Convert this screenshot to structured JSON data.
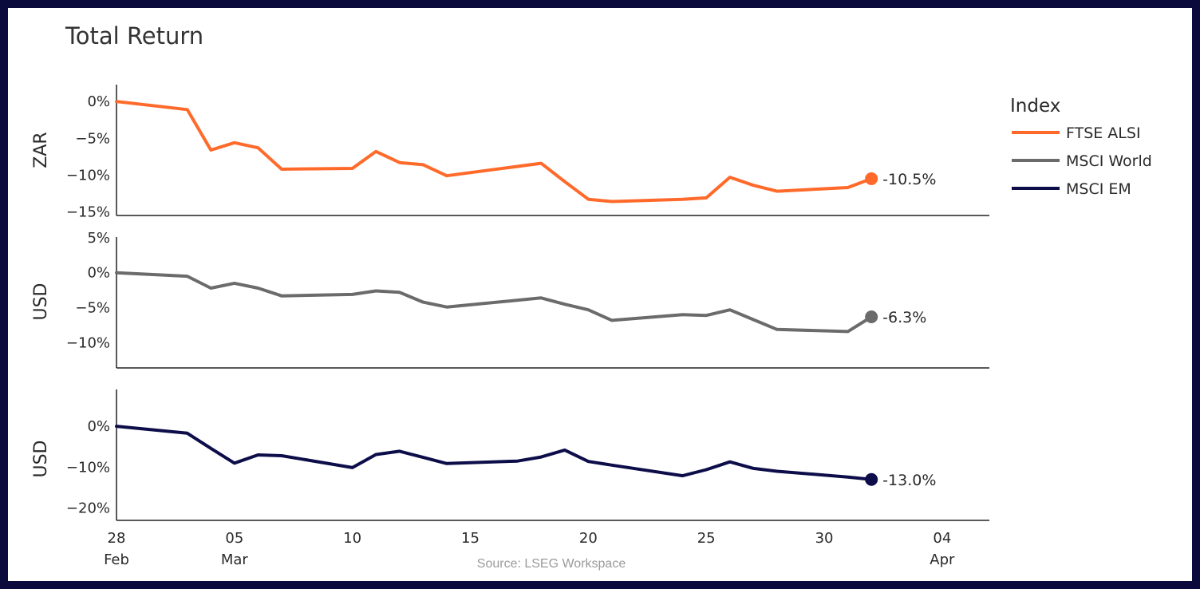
{
  "chart_data": {
    "type": "line",
    "title": "Total Return",
    "source": "Source: LSEG Workspace",
    "legend": {
      "title": "Index",
      "position": "right"
    },
    "x_ticks": [
      {
        "date": "2025-02-28",
        "day": "28",
        "month": "Feb"
      },
      {
        "date": "2025-03-05",
        "day": "05",
        "month": "Mar"
      },
      {
        "date": "2025-03-10",
        "day": "10",
        "month": ""
      },
      {
        "date": "2025-03-15",
        "day": "15",
        "month": ""
      },
      {
        "date": "2025-03-20",
        "day": "20",
        "month": ""
      },
      {
        "date": "2025-03-25",
        "day": "25",
        "month": ""
      },
      {
        "date": "2025-03-30",
        "day": "30",
        "month": ""
      },
      {
        "date": "2025-04-04",
        "day": "04",
        "month": "Apr"
      }
    ],
    "xlim": [
      "2025-02-28",
      "2025-04-06"
    ],
    "panels": [
      {
        "ylabel": "ZAR",
        "series_name": "FTSE ALSI",
        "color": "#ff6a2b",
        "ylim": [
          -15.5,
          2.3
        ],
        "y_ticks": [
          {
            "v": 0,
            "label": "0%"
          },
          {
            "v": -5,
            "label": "−5%"
          },
          {
            "v": -10,
            "label": "−10%"
          },
          {
            "v": -15,
            "label": "−15%"
          }
        ],
        "end_label": "-10.5%",
        "points": [
          [
            "2025-02-28",
            0
          ],
          [
            "2025-03-03",
            -1.1
          ],
          [
            "2025-03-04",
            -6.6
          ],
          [
            "2025-03-05",
            -5.6
          ],
          [
            "2025-03-06",
            -6.3
          ],
          [
            "2025-03-07",
            -9.2
          ],
          [
            "2025-03-10",
            -9.1
          ],
          [
            "2025-03-11",
            -6.8
          ],
          [
            "2025-03-12",
            -8.3
          ],
          [
            "2025-03-13",
            -8.6
          ],
          [
            "2025-03-14",
            -10.1
          ],
          [
            "2025-03-18",
            -8.4
          ],
          [
            "2025-03-19",
            -10.9
          ],
          [
            "2025-03-20",
            -13.3
          ],
          [
            "2025-03-21",
            -13.6
          ],
          [
            "2025-03-24",
            -13.3
          ],
          [
            "2025-03-25",
            -13.1
          ],
          [
            "2025-03-26",
            -10.3
          ],
          [
            "2025-03-27",
            -11.4
          ],
          [
            "2025-03-28",
            -12.2
          ],
          [
            "2025-03-31",
            -11.7
          ],
          [
            "2025-04-01",
            -10.5
          ]
        ]
      },
      {
        "ylabel": "USD",
        "series_name": "MSCI World",
        "color": "#6b6b6b",
        "ylim": [
          -13.6,
          5.1
        ],
        "y_ticks": [
          {
            "v": 5,
            "label": "5%"
          },
          {
            "v": 0,
            "label": "0%"
          },
          {
            "v": -5,
            "label": "−5%"
          },
          {
            "v": -10,
            "label": "−10%"
          }
        ],
        "end_label": "-6.3%",
        "points": [
          [
            "2025-02-28",
            0
          ],
          [
            "2025-03-03",
            -0.5
          ],
          [
            "2025-03-04",
            -2.2
          ],
          [
            "2025-03-05",
            -1.5
          ],
          [
            "2025-03-06",
            -2.2
          ],
          [
            "2025-03-07",
            -3.3
          ],
          [
            "2025-03-10",
            -3.1
          ],
          [
            "2025-03-11",
            -2.6
          ],
          [
            "2025-03-12",
            -2.8
          ],
          [
            "2025-03-13",
            -4.2
          ],
          [
            "2025-03-14",
            -4.9
          ],
          [
            "2025-03-18",
            -3.6
          ],
          [
            "2025-03-19",
            -4.5
          ],
          [
            "2025-03-20",
            -5.3
          ],
          [
            "2025-03-21",
            -6.8
          ],
          [
            "2025-03-24",
            -6.0
          ],
          [
            "2025-03-25",
            -6.1
          ],
          [
            "2025-03-26",
            -5.3
          ],
          [
            "2025-03-27",
            -6.7
          ],
          [
            "2025-03-28",
            -8.1
          ],
          [
            "2025-03-31",
            -8.4
          ],
          [
            "2025-04-01",
            -6.3
          ]
        ]
      },
      {
        "ylabel": "USD",
        "series_name": "MSCI EM",
        "color": "#0d0d4a",
        "ylim": [
          -23,
          9
        ],
        "y_ticks": [
          {
            "v": 0,
            "label": "0%"
          },
          {
            "v": -10,
            "label": "−10%"
          },
          {
            "v": -20,
            "label": "−20%"
          }
        ],
        "end_label": "-13.0%",
        "points": [
          [
            "2025-02-28",
            0
          ],
          [
            "2025-03-03",
            -1.7
          ],
          [
            "2025-03-04",
            -5.4
          ],
          [
            "2025-03-05",
            -9.0
          ],
          [
            "2025-03-06",
            -7.0
          ],
          [
            "2025-03-07",
            -7.2
          ],
          [
            "2025-03-10",
            -10.1
          ],
          [
            "2025-03-11",
            -6.9
          ],
          [
            "2025-03-12",
            -6.1
          ],
          [
            "2025-03-13",
            -7.6
          ],
          [
            "2025-03-14",
            -9.1
          ],
          [
            "2025-03-17",
            -8.5
          ],
          [
            "2025-03-18",
            -7.5
          ],
          [
            "2025-03-19",
            -5.8
          ],
          [
            "2025-03-20",
            -8.6
          ],
          [
            "2025-03-21",
            -9.5
          ],
          [
            "2025-03-24",
            -12.1
          ],
          [
            "2025-03-25",
            -10.6
          ],
          [
            "2025-03-26",
            -8.7
          ],
          [
            "2025-03-27",
            -10.3
          ],
          [
            "2025-03-28",
            -11.0
          ],
          [
            "2025-03-31",
            -12.4
          ],
          [
            "2025-04-01",
            -13.0
          ]
        ]
      }
    ]
  }
}
